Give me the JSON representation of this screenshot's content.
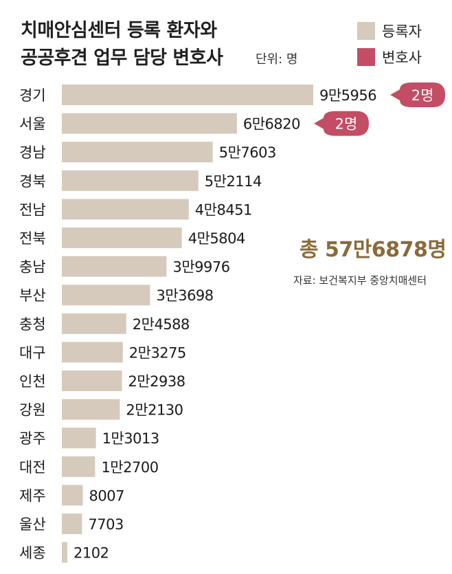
{
  "title_line1": "치매안심센터 등록 환자와",
  "title_line2": "공공후견 업무 담당 변호사",
  "unit": "단위: 명",
  "legend": [
    {
      "label": "등록자",
      "color": "#d6cabc"
    },
    {
      "label": "변호사",
      "color": "#c24d64"
    }
  ],
  "total": "총 57만6878명",
  "source": "자료: 보건복지부 중앙치매센터",
  "chart_data": {
    "type": "bar",
    "orientation": "horizontal",
    "categories": [
      "경기",
      "서울",
      "경남",
      "경북",
      "전남",
      "전북",
      "충남",
      "부산",
      "충청",
      "대구",
      "인천",
      "강원",
      "광주",
      "대전",
      "제주",
      "울산",
      "세종"
    ],
    "series": [
      {
        "name": "등록자",
        "values": [
          95956,
          66820,
          57603,
          52114,
          48451,
          45804,
          39976,
          33698,
          24588,
          23275,
          22938,
          22130,
          13013,
          12700,
          8007,
          7703,
          2102
        ]
      }
    ],
    "value_labels": [
      "9만5956",
      "6만6820",
      "5만7603",
      "5만2114",
      "4만8451",
      "4만5804",
      "3만9976",
      "3만3698",
      "2만4588",
      "2만3275",
      "2만2938",
      "2만2130",
      "1만3013",
      "1만2700",
      "8007",
      "7703",
      "2102"
    ],
    "lawyer_annotations": [
      {
        "category": "경기",
        "label": "2명",
        "value": 2
      },
      {
        "category": "서울",
        "label": "2명",
        "value": 2
      }
    ],
    "bar_color": "#d6cabc",
    "badge_color": "#c24d64"
  }
}
